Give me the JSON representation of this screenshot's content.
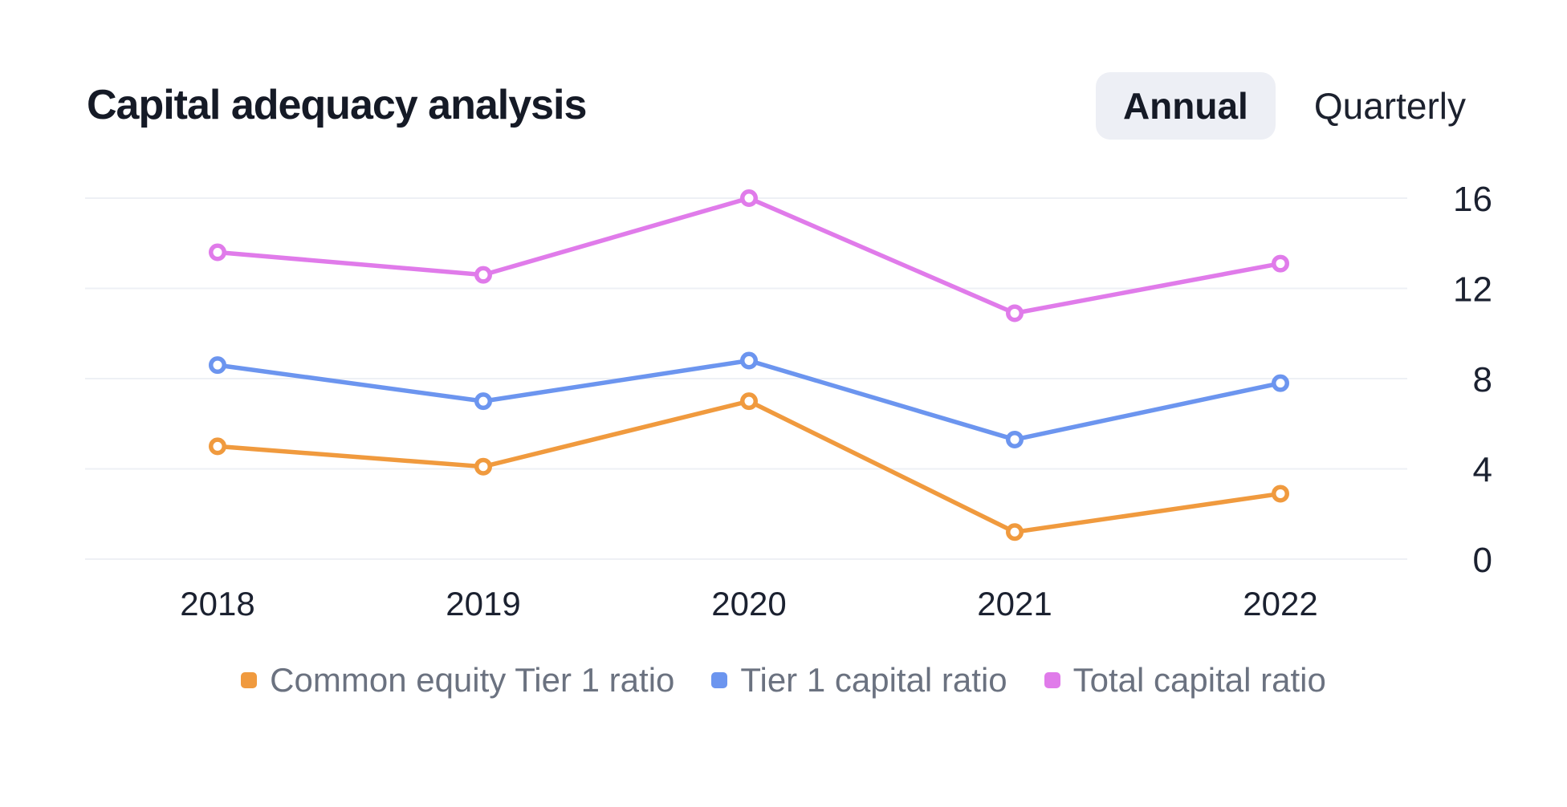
{
  "header": {
    "title": "Capital adequacy analysis",
    "toggle": {
      "options": [
        "Annual",
        "Quarterly"
      ],
      "selected": "Annual"
    }
  },
  "chart_data": {
    "type": "line",
    "title": "Capital adequacy analysis",
    "categories": [
      "2018",
      "2019",
      "2020",
      "2021",
      "2022"
    ],
    "series": [
      {
        "name": "Common equity Tier 1 ratio",
        "color": "#f09a3e",
        "values": [
          5.0,
          4.1,
          7.0,
          1.2,
          2.9
        ]
      },
      {
        "name": "Tier 1 capital ratio",
        "color": "#6c95ef",
        "values": [
          8.6,
          7.0,
          8.8,
          5.3,
          7.8
        ]
      },
      {
        "name": "Total capital ratio",
        "color": "#e07bea",
        "values": [
          13.6,
          12.6,
          16.0,
          10.9,
          13.1
        ]
      }
    ],
    "xlabel": "",
    "ylabel": "",
    "y_ticks": [
      0,
      4,
      8,
      12,
      16
    ],
    "ylim": [
      0,
      16
    ],
    "y_axis_side": "right",
    "grid": true,
    "gridline_color": "#eef0f5",
    "marker": "open-circle",
    "legend_position": "bottom"
  },
  "colors": {
    "background": "#ffffff",
    "title_text": "#151a26",
    "axis_text": "#1b2130",
    "legend_text": "#6b7280",
    "selected_pill_bg": "#edeff5"
  }
}
